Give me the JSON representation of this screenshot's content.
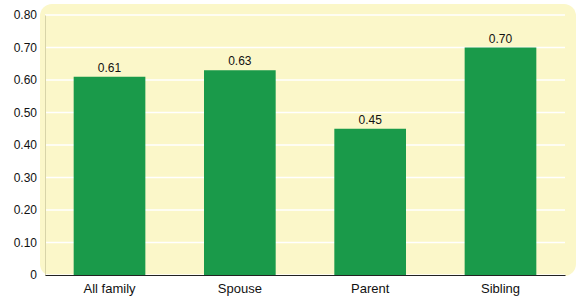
{
  "chart_data": {
    "type": "bar",
    "categories": [
      "All family",
      "Spouse",
      "Parent",
      "Sibling"
    ],
    "values": [
      0.61,
      0.63,
      0.45,
      0.7
    ],
    "value_labels": [
      "0.61",
      "0.63",
      "0.45",
      "0.70"
    ],
    "color": "#1a9a4a",
    "ylim": [
      0,
      0.8
    ],
    "yticks": [
      0,
      {
        "value": 0.1,
        "label": "0.10"
      },
      {
        "value": 0.2,
        "label": "0.20"
      },
      {
        "value": 0.3,
        "label": "0.30"
      },
      {
        "value": 0.4,
        "label": "0.40"
      },
      {
        "value": 0.5,
        "label": "0.50"
      },
      {
        "value": 0.6,
        "label": "0.60"
      },
      {
        "value": 0.7,
        "label": "0.70"
      },
      {
        "value": 0.8,
        "label": "0.80"
      }
    ],
    "grid": true,
    "data_labels": true
  }
}
